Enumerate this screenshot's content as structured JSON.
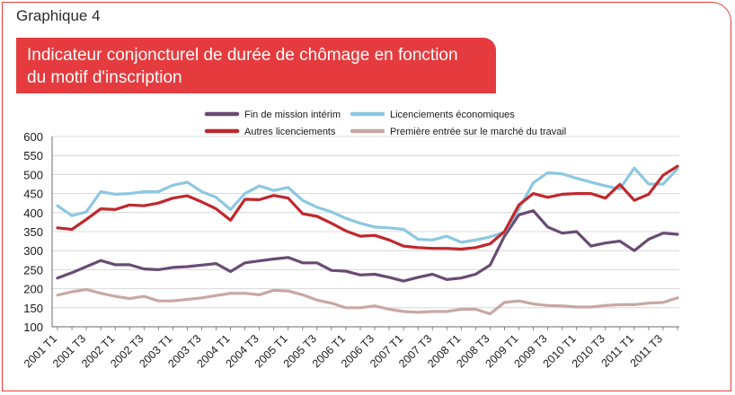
{
  "header": {
    "graph_label": "Graphique 4",
    "title_line1": "Indicateur conjoncturel de durée de chômage en fonction",
    "title_line2": "du motif d'inscription"
  },
  "colors": {
    "accent": "#e63b3e",
    "fin_mission": "#6a4b74",
    "licenciements_eco": "#8cc8e2",
    "autres_licenciements": "#c0282d",
    "premiere_entree": "#c8a8a4"
  },
  "chart_data": {
    "type": "line",
    "title": "",
    "xlabel": "",
    "ylabel": "",
    "ylim": [
      100,
      600
    ],
    "yticks": [
      100,
      150,
      200,
      250,
      300,
      350,
      400,
      450,
      500,
      550,
      600
    ],
    "grid": "horizontal",
    "legend_position": "top-center",
    "x": [
      "2001 T1",
      "2001 T2",
      "2001 T3",
      "2001 T4",
      "2002 T1",
      "2002 T2",
      "2002 T3",
      "2002 T4",
      "2003 T1",
      "2003 T2",
      "2003 T3",
      "2003 T4",
      "2004 T1",
      "2004 T2",
      "2004 T3",
      "2004 T4",
      "2005 T1",
      "2005 T2",
      "2005 T3",
      "2005 T4",
      "2006 T1",
      "2006 T2",
      "2006 T3",
      "2006 T4",
      "2007 T1",
      "2007 T2",
      "2007 T3",
      "2007 T4",
      "2008 T1",
      "2008 T2",
      "2008 T3",
      "2008 T4",
      "2009 T1",
      "2009 T2",
      "2009 T3",
      "2009 T4",
      "2010 T1",
      "2010 T2",
      "2010 T3",
      "2010 T4",
      "2011 T1",
      "2011 T2",
      "2011 T3",
      "2011 T4"
    ],
    "x_tick_labels": [
      "2001 T1",
      "2001 T3",
      "2002 T1",
      "2002 T3",
      "2003 T1",
      "2003 T3",
      "2004 T1",
      "2004 T3",
      "2005 T1",
      "2005 T3",
      "2006 T1",
      "2006 T3",
      "2007 T1",
      "2007 T3",
      "2008 T1",
      "2008 T3",
      "2009 T1",
      "2009 T3",
      "2010 T1",
      "2010 T3",
      "2011 T1",
      "2011 T3"
    ],
    "series": [
      {
        "name": "Fin de mission intérim",
        "color_key": "fin_mission",
        "values": [
          228,
          242,
          258,
          274,
          263,
          263,
          252,
          250,
          256,
          258,
          262,
          266,
          245,
          268,
          273,
          278,
          282,
          268,
          268,
          248,
          246,
          236,
          238,
          230,
          220,
          230,
          238,
          224,
          228,
          238,
          262,
          338,
          394,
          405,
          362,
          346,
          350,
          312,
          320,
          325,
          300,
          330,
          346,
          343
        ]
      },
      {
        "name": "Licenciements économiques",
        "color_key": "licenciements_eco",
        "values": [
          418,
          392,
          402,
          455,
          448,
          450,
          455,
          455,
          472,
          480,
          455,
          440,
          408,
          450,
          470,
          458,
          466,
          432,
          414,
          402,
          385,
          372,
          362,
          360,
          356,
          330,
          328,
          338,
          322,
          328,
          336,
          348,
          410,
          478,
          505,
          502,
          490,
          480,
          470,
          462,
          517,
          475,
          475,
          515
        ]
      },
      {
        "name": "Autres licenciements",
        "color_key": "autres_licenciements",
        "values": [
          360,
          356,
          382,
          410,
          408,
          420,
          418,
          425,
          438,
          444,
          428,
          410,
          380,
          435,
          434,
          445,
          438,
          397,
          390,
          372,
          352,
          338,
          340,
          328,
          312,
          308,
          306,
          306,
          304,
          308,
          318,
          350,
          420,
          450,
          440,
          448,
          450,
          450,
          438,
          474,
          432,
          448,
          498,
          522
        ]
      },
      {
        "name": "Première entrée sur le marché du travail",
        "color_key": "premiere_entree",
        "values": [
          183,
          192,
          198,
          188,
          180,
          174,
          180,
          168,
          168,
          172,
          176,
          182,
          188,
          188,
          184,
          196,
          194,
          184,
          170,
          162,
          150,
          150,
          155,
          146,
          140,
          138,
          140,
          140,
          146,
          146,
          134,
          164,
          168,
          160,
          156,
          155,
          152,
          152,
          156,
          158,
          158,
          162,
          164,
          176
        ]
      }
    ]
  }
}
